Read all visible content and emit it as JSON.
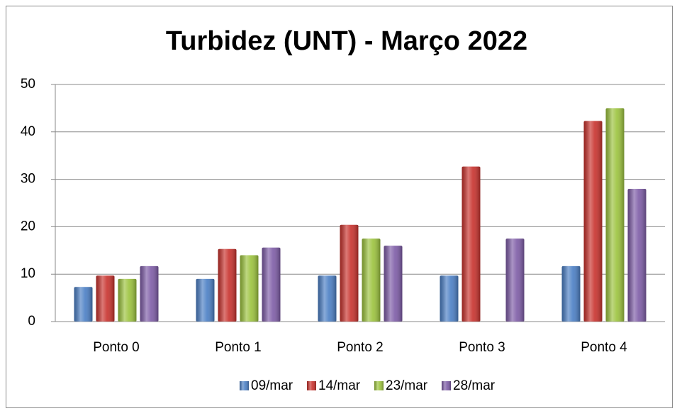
{
  "chart_data": {
    "type": "bar",
    "title": "Turbidez (UNT) - Março 2022",
    "categories": [
      "Ponto 0",
      "Ponto 1",
      "Ponto 2",
      "Ponto 3",
      "Ponto 4"
    ],
    "series": [
      {
        "name": "09/mar",
        "color": "#4a7ec4",
        "values": [
          7.3,
          9.0,
          9.7,
          9.7,
          11.7
        ]
      },
      {
        "name": "14/mar",
        "color": "#c8312c",
        "values": [
          9.7,
          15.3,
          20.4,
          32.7,
          42.3
        ]
      },
      {
        "name": "23/mar",
        "color": "#9bc23c",
        "values": [
          9.0,
          14.0,
          17.5,
          null,
          45.0
        ]
      },
      {
        "name": "28/mar",
        "color": "#7d5ba6",
        "values": [
          11.7,
          15.6,
          16.0,
          17.5,
          28.0
        ]
      }
    ],
    "ylim": [
      0,
      50
    ],
    "yticks": [
      0,
      10,
      20,
      30,
      40,
      50
    ],
    "grid": true,
    "legend": "bottom"
  }
}
